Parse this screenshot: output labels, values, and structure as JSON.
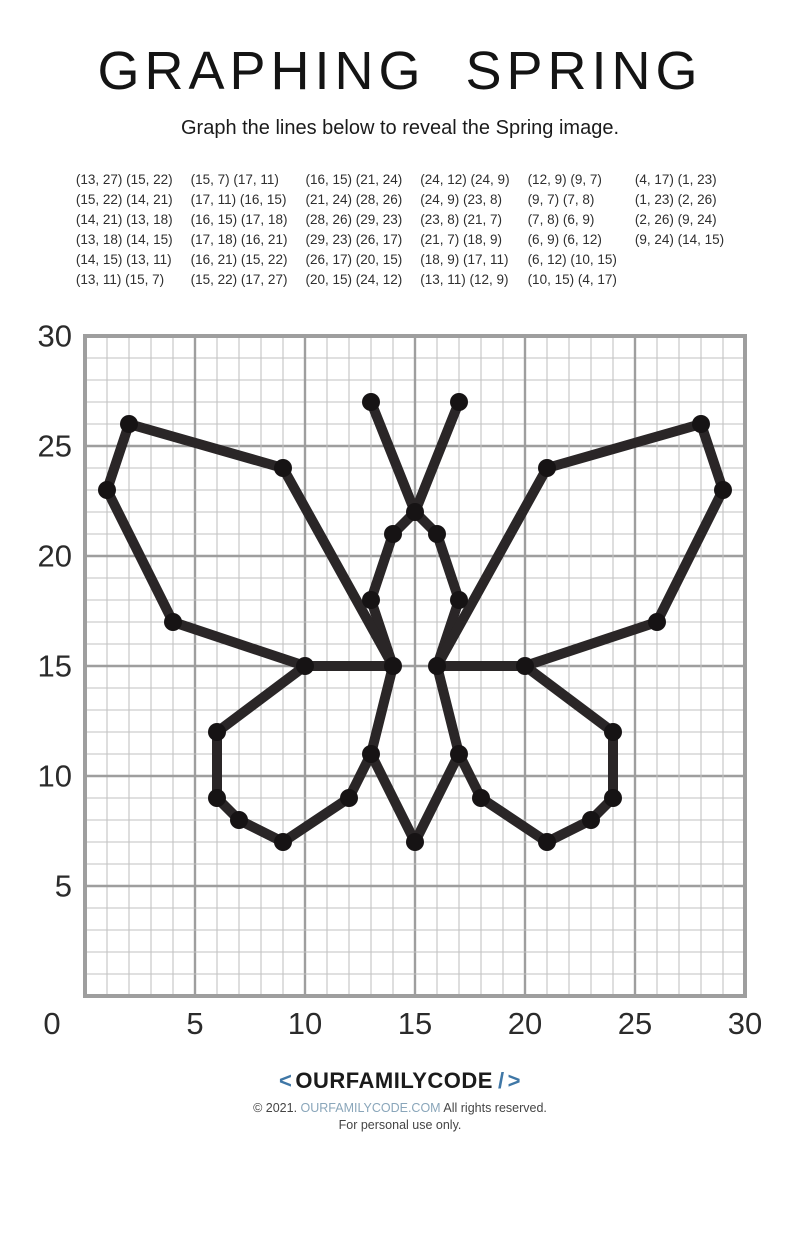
{
  "header": {
    "title": "GRAPHING SPRING",
    "subtitle": "Graph the lines below to reveal the Spring image."
  },
  "chart_data": {
    "type": "line",
    "title": "GRAPHING SPRING",
    "description": "Coordinate-grid connect-the-lines puzzle whose plotted segments reveal a butterfly",
    "xlim": [
      0,
      30
    ],
    "ylim": [
      0,
      30
    ],
    "x_ticks": [
      0,
      5,
      10,
      15,
      20,
      25,
      30
    ],
    "y_ticks": [
      0,
      5,
      10,
      15,
      20,
      25,
      30
    ],
    "minor_grid_step": 1,
    "major_grid_step": 5,
    "grid": true,
    "legend": false,
    "line_color": "#2a2627",
    "dot_color": "#161314",
    "minor_grid_color": "#c2c2c2",
    "major_grid_color": "#9e9e9e",
    "axis_label_color": "#2b2b2b",
    "segment_columns": [
      [
        [
          [
            13,
            27
          ],
          [
            15,
            22
          ]
        ],
        [
          [
            15,
            22
          ],
          [
            14,
            21
          ]
        ],
        [
          [
            14,
            21
          ],
          [
            13,
            18
          ]
        ],
        [
          [
            13,
            18
          ],
          [
            14,
            15
          ]
        ],
        [
          [
            14,
            15
          ],
          [
            13,
            11
          ]
        ],
        [
          [
            13,
            11
          ],
          [
            15,
            7
          ]
        ]
      ],
      [
        [
          [
            15,
            7
          ],
          [
            17,
            11
          ]
        ],
        [
          [
            17,
            11
          ],
          [
            16,
            15
          ]
        ],
        [
          [
            16,
            15
          ],
          [
            17,
            18
          ]
        ],
        [
          [
            17,
            18
          ],
          [
            16,
            21
          ]
        ],
        [
          [
            16,
            21
          ],
          [
            15,
            22
          ]
        ],
        [
          [
            15,
            22
          ],
          [
            17,
            27
          ]
        ]
      ],
      [
        [
          [
            16,
            15
          ],
          [
            21,
            24
          ]
        ],
        [
          [
            21,
            24
          ],
          [
            28,
            26
          ]
        ],
        [
          [
            28,
            26
          ],
          [
            29,
            23
          ]
        ],
        [
          [
            29,
            23
          ],
          [
            26,
            17
          ]
        ],
        [
          [
            26,
            17
          ],
          [
            20,
            15
          ]
        ],
        [
          [
            20,
            15
          ],
          [
            24,
            12
          ]
        ]
      ],
      [
        [
          [
            24,
            12
          ],
          [
            24,
            9
          ]
        ],
        [
          [
            24,
            9
          ],
          [
            23,
            8
          ]
        ],
        [
          [
            23,
            8
          ],
          [
            21,
            7
          ]
        ],
        [
          [
            21,
            7
          ],
          [
            18,
            9
          ]
        ],
        [
          [
            18,
            9
          ],
          [
            17,
            11
          ]
        ],
        [
          [
            13,
            11
          ],
          [
            12,
            9
          ]
        ]
      ],
      [
        [
          [
            12,
            9
          ],
          [
            9,
            7
          ]
        ],
        [
          [
            9,
            7
          ],
          [
            7,
            8
          ]
        ],
        [
          [
            7,
            8
          ],
          [
            6,
            9
          ]
        ],
        [
          [
            6,
            9
          ],
          [
            6,
            12
          ]
        ],
        [
          [
            6,
            12
          ],
          [
            10,
            15
          ]
        ],
        [
          [
            10,
            15
          ],
          [
            4,
            17
          ]
        ]
      ],
      [
        [
          [
            4,
            17
          ],
          [
            1,
            23
          ]
        ],
        [
          [
            1,
            23
          ],
          [
            2,
            26
          ]
        ],
        [
          [
            2,
            26
          ],
          [
            9,
            24
          ]
        ],
        [
          [
            9,
            24
          ],
          [
            14,
            15
          ]
        ]
      ]
    ],
    "extra_drawn_segments": [
      [
        [
          10,
          15
        ],
        [
          14,
          15
        ]
      ],
      [
        [
          16,
          15
        ],
        [
          20,
          15
        ]
      ]
    ]
  },
  "footer": {
    "logo_open": "<",
    "logo_text": "OURFAMILYCODE",
    "logo_slash": "/",
    "logo_close": ">",
    "copyright_prefix": "© 2021.",
    "site": "OURFAMILYCODE.COM",
    "copyright_suffix": "All rights reserved.",
    "personal_use": "For personal use only.",
    "accent_blue": "#3f77a6",
    "link_blue": "#8aa6ba"
  }
}
